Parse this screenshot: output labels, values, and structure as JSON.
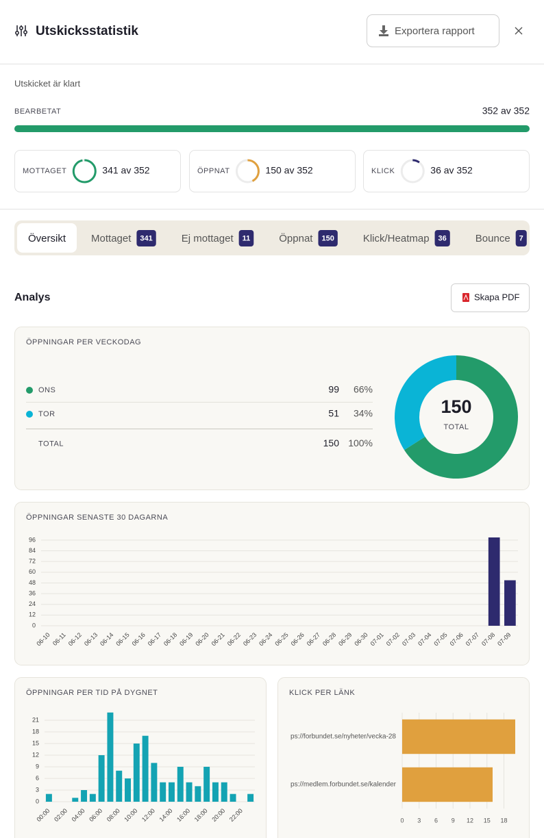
{
  "header": {
    "title": "Utskicksstatistik",
    "export_button": "Exportera rapport"
  },
  "status": "Utskicket är klart",
  "progress": {
    "label": "BEARBETAT",
    "value": 352,
    "total": 352,
    "value_label": "352 av 352",
    "color": "#239b6a"
  },
  "stats": [
    {
      "label": "MOTTAGET",
      "value": 341,
      "total": 352,
      "value_label": "341 av 352",
      "color": "#239b6a"
    },
    {
      "label": "ÖPPNAT",
      "value": 150,
      "total": 352,
      "value_label": "150 av 352",
      "color": "#e0a03e"
    },
    {
      "label": "KLICK",
      "value": 36,
      "total": 352,
      "value_label": "36 av 352",
      "color": "#2e2a6e"
    }
  ],
  "tabs": [
    {
      "label": "Översikt"
    },
    {
      "label": "Mottaget",
      "count": 341
    },
    {
      "label": "Ej mottaget",
      "count": 11
    },
    {
      "label": "Öppnat",
      "count": 150
    },
    {
      "label": "Klick/Heatmap",
      "count": 36
    },
    {
      "label": "Bounce",
      "count": 7
    }
  ],
  "analysis": {
    "title": "Analys",
    "pdf_button": "Skapa PDF"
  },
  "chart_data": [
    {
      "type": "pie",
      "title": "ÖPPNINGAR PER VECKODAG",
      "categories": [
        "ONS",
        "TOR"
      ],
      "values": [
        99,
        51
      ],
      "percent_labels": [
        "66%",
        "34%"
      ],
      "colors": [
        "#239b6a",
        "#0ab4d6"
      ],
      "total_label": "TOTAL",
      "total": 150,
      "total_percent_label": "100%"
    },
    {
      "type": "bar",
      "title": "ÖPPNINGAR SENASTE 30 DAGARNA",
      "categories": [
        "06-10",
        "06-11",
        "06-12",
        "06-13",
        "06-14",
        "06-15",
        "06-16",
        "06-17",
        "06-18",
        "06-19",
        "06-20",
        "06-21",
        "06-22",
        "06-23",
        "06-24",
        "06-25",
        "06-26",
        "06-27",
        "06-28",
        "06-29",
        "06-30",
        "07-01",
        "07-02",
        "07-03",
        "07-04",
        "07-05",
        "07-06",
        "07-07",
        "07-08",
        "07-09"
      ],
      "values": [
        0,
        0,
        0,
        0,
        0,
        0,
        0,
        0,
        0,
        0,
        0,
        0,
        0,
        0,
        0,
        0,
        0,
        0,
        0,
        0,
        0,
        0,
        0,
        0,
        0,
        0,
        0,
        0,
        99,
        51
      ],
      "color": "#2e2a6e",
      "ylim": [
        0,
        99
      ],
      "yticks": [
        0,
        12,
        24,
        36,
        48,
        60,
        72,
        84,
        96
      ],
      "grid": true
    },
    {
      "type": "bar",
      "title": "ÖPPNINGAR PER TID PÅ DYGNET",
      "categories": [
        "00:00",
        null,
        "02:00",
        null,
        "04:00",
        null,
        "06:00",
        null,
        "08:00",
        null,
        "10:00",
        null,
        "12:00",
        null,
        "14:00",
        null,
        "16:00",
        null,
        "18:00",
        null,
        "20:00",
        null,
        "22:00",
        null
      ],
      "values": [
        2,
        0,
        0,
        1,
        3,
        2,
        12,
        23,
        8,
        6,
        15,
        17,
        10,
        5,
        5,
        9,
        5,
        4,
        9,
        5,
        5,
        2,
        0,
        2
      ],
      "color": "#14a3b3",
      "ylim": [
        0,
        23
      ],
      "yticks": [
        0,
        3,
        6,
        9,
        12,
        15,
        18,
        21
      ],
      "grid": true
    },
    {
      "type": "bar",
      "horizontal": true,
      "title": "KLICK PER LÄNK",
      "categories": [
        "ps://forbundet.se/nyheter/vecka-28",
        "ps://medlem.forbundet.se/kalender"
      ],
      "values": [
        20,
        16
      ],
      "color": "#e0a03e",
      "xlim": [
        0,
        20
      ],
      "xticks": [
        0,
        3,
        6,
        9,
        12,
        15,
        18
      ],
      "grid": true
    }
  ]
}
